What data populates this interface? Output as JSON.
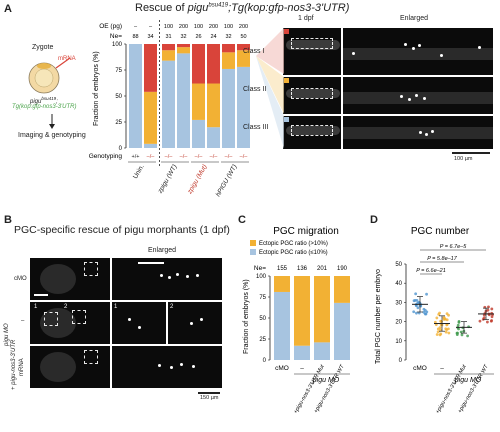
{
  "panelA": {
    "letter": "A",
    "title_prefix": "Rescue of ",
    "title_gene": "pigu",
    "title_allele": "bsu419",
    "title_suffix": ";Tg(kop:gfp-nos3-3'UTR)",
    "zygote_label": "Zygote",
    "mrna_label": "mRNA",
    "genotype_line1": "pigu",
    "genotype_line1_sup": "bsu419",
    "genotype_line2": "Tg(kop:gfp-nos3-3'UTR)",
    "imaging_label": "Imaging & genotyping",
    "day_label": "1 dpf",
    "enlarged_label": "Enlarged",
    "scale_label": "100 µm",
    "classes": [
      "Class I",
      "Class II",
      "Class III"
    ],
    "class_colors": [
      "#d9443a",
      "#f2b134",
      "#a7c4e0"
    ]
  },
  "panelB": {
    "letter": "B",
    "title": "PGC-specific rescue of pigu morphants (1 dpf)",
    "enlarged_label": "Enlarged",
    "row_labels": [
      "cMO",
      "–",
      "mRNA"
    ],
    "side_label_1": "pigu MO",
    "side_label_2": "+ pigu-nos3-3'UTR",
    "inset_numbers": [
      "1",
      "2",
      "1",
      "2"
    ],
    "scale_label": "150 µm"
  },
  "chart_data": [
    {
      "type": "bar",
      "panel": "A",
      "stacked": true,
      "ylabel": "Fraction of embryos (%)",
      "ylim": [
        0,
        100
      ],
      "yticks": [
        0,
        25,
        50,
        75,
        100
      ],
      "oe_header": "OE (pg)",
      "ne_header": "Ne=",
      "oe": [
        "–",
        "–",
        "100",
        "200",
        "100",
        "200",
        "100",
        "200"
      ],
      "ne": [
        "88",
        "34",
        "31",
        "32",
        "26",
        "24",
        "32",
        "50"
      ],
      "genotyping_label": "Genotyping",
      "genotypes": [
        "+/+",
        "–/–",
        "–/–",
        "–/–",
        "–/–",
        "–/–",
        "–/–",
        "–/–"
      ],
      "group_labels": [
        "Unin.",
        "zpigu (WT)",
        "zpigu (Mut)",
        "hPIGU (WT)"
      ],
      "series": [
        {
          "name": "Class III",
          "color": "#a7c4e0",
          "values": [
            100,
            4,
            84,
            91,
            27,
            20,
            76,
            78
          ]
        },
        {
          "name": "Class II",
          "color": "#f2b134",
          "values": [
            0,
            50,
            10,
            6,
            35,
            42,
            16,
            16
          ]
        },
        {
          "name": "Class I",
          "color": "#d9443a",
          "values": [
            0,
            46,
            6,
            3,
            38,
            38,
            8,
            6
          ]
        }
      ]
    },
    {
      "type": "bar",
      "panel": "C",
      "stacked": true,
      "title": "PGC migration",
      "ylabel": "Fraction of embryos (%)",
      "ylim": [
        0,
        100
      ],
      "yticks": [
        0,
        25,
        50,
        75,
        100
      ],
      "ne_header": "Ne=",
      "ne": [
        "155",
        "136",
        "201",
        "190"
      ],
      "categories": [
        "cMO",
        "–",
        "+pigu-nos3-3'UTR Mut",
        "+pigu-nos3-3'UTR WT"
      ],
      "group_label": "pigu MO",
      "series": [
        {
          "name": "Ectopic PGC ratio (≤10%)",
          "color": "#a7c4e0",
          "values": [
            81,
            17,
            21,
            68
          ]
        },
        {
          "name": "Ectopic PGC ratio (>10%)",
          "color": "#f2b134",
          "values": [
            19,
            83,
            79,
            32
          ]
        }
      ]
    },
    {
      "type": "scatter",
      "panel": "D",
      "title": "PGC number",
      "ylabel": "Total PGC number per embryo",
      "ylim": [
        0,
        50
      ],
      "yticks": [
        0,
        10,
        20,
        30,
        40,
        50
      ],
      "categories": [
        "cMO",
        "–",
        "+pigu-nos3-3'UTR Mut",
        "+pigu-nos3-3'UTR WT"
      ],
      "group_label": "pigu MO",
      "colors": [
        "#4f95cf",
        "#f2b134",
        "#3f9a4c",
        "#c0392b"
      ],
      "means": [
        29,
        19,
        17,
        24
      ],
      "sds": [
        4,
        4,
        3,
        3
      ],
      "counts": [
        24,
        32,
        14,
        18
      ],
      "pvalues": [
        "P = 6.6e–21",
        "P = 5.8e–17",
        "P = 6.7e–5"
      ]
    }
  ]
}
